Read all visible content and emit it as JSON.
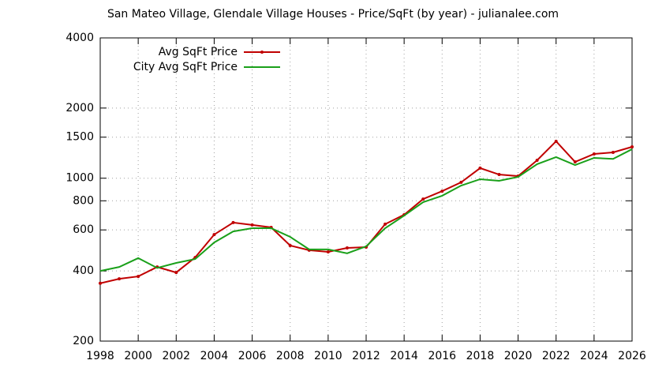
{
  "chart_data": {
    "type": "line",
    "title": "San Mateo Village, Glendale Village Houses - Price/SqFt (by year) - julianalee.com",
    "x": [
      1998,
      1999,
      2000,
      2001,
      2002,
      2003,
      2004,
      2005,
      2006,
      2007,
      2008,
      2009,
      2010,
      2011,
      2012,
      2013,
      2014,
      2015,
      2016,
      2017,
      2018,
      2019,
      2020,
      2021,
      2022,
      2023,
      2024,
      2025,
      2026
    ],
    "series": [
      {
        "name": "Avg SqFt Price",
        "color": "#c00000",
        "markers": true,
        "values": [
          354,
          370,
          379,
          416,
          394,
          457,
          573,
          645,
          630,
          615,
          514,
          491,
          483,
          502,
          506,
          635,
          697,
          814,
          880,
          960,
          1105,
          1037,
          1021,
          1194,
          1440,
          1175,
          1271,
          1291,
          1363
        ]
      },
      {
        "name": "City Avg SqFt Price",
        "color": "#1aa01a",
        "markers": false,
        "values": [
          400,
          416,
          454,
          412,
          433,
          450,
          530,
          591,
          610,
          610,
          560,
          495,
          495,
          476,
          510,
          610,
          691,
          789,
          841,
          930,
          990,
          975,
          1013,
          1149,
          1232,
          1139,
          1222,
          1210,
          1332
        ]
      }
    ],
    "xlim": [
      1998,
      2026
    ],
    "xticks": [
      1998,
      2000,
      2002,
      2004,
      2006,
      2008,
      2010,
      2012,
      2014,
      2016,
      2018,
      2020,
      2022,
      2024,
      2026
    ],
    "ylim": [
      200,
      4000
    ],
    "yticks": [
      200,
      400,
      600,
      800,
      1000,
      1500,
      2000,
      4000
    ],
    "log_y": true,
    "grid": true,
    "legend": "top-left"
  }
}
